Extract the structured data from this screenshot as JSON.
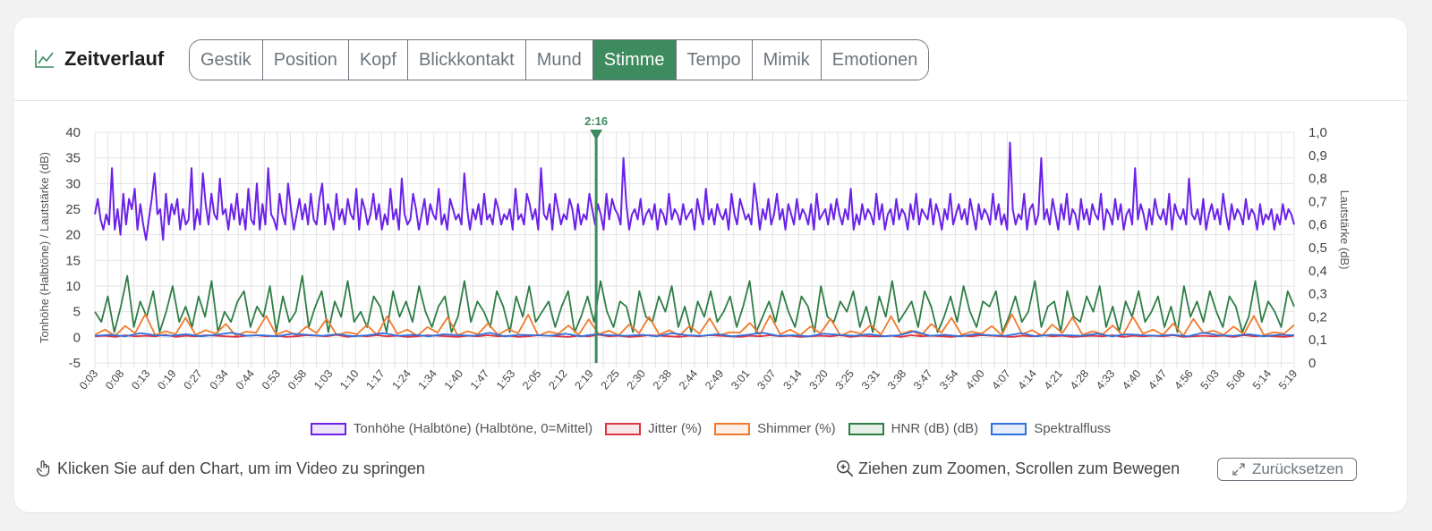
{
  "header": {
    "title": "Zeitverlauf",
    "tabs": [
      "Gestik",
      "Position",
      "Kopf",
      "Blickkontakt",
      "Mund",
      "Stimme",
      "Tempo",
      "Mimik",
      "Emotionen"
    ],
    "active_tab": "Stimme"
  },
  "footer": {
    "hint_left": "Klicken Sie auf den Chart, um im Video zu springen",
    "hint_right": "Ziehen zum Zoomen, Scrollen zum Bewegen",
    "reset_label": "Zurücksetzen"
  },
  "chart_data": {
    "type": "line",
    "ylabel": "Tonhöhe (Halbtöne) / Lautstärke (dB)",
    "y2label": "Lautstärke (dB)",
    "ylim": [
      -5,
      40
    ],
    "yticks": [
      -5,
      0,
      5,
      10,
      15,
      20,
      25,
      30,
      35,
      40
    ],
    "y2lim": [
      0,
      1
    ],
    "y2ticks": [
      "0",
      "0,1",
      "0,2",
      "0,3",
      "0,4",
      "0,5",
      "0,6",
      "0,7",
      "0,8",
      "0,9",
      "1,0"
    ],
    "x_tick_labels": [
      "0:03",
      "0:08",
      "0:13",
      "0:19",
      "0:27",
      "0:34",
      "0:44",
      "0:53",
      "0:58",
      "1:03",
      "1:10",
      "1:17",
      "1:24",
      "1:34",
      "1:40",
      "1:47",
      "1:53",
      "2:05",
      "2:12",
      "2:19",
      "2:25",
      "2:30",
      "2:38",
      "2:44",
      "2:49",
      "3:01",
      "3:07",
      "3:14",
      "3:20",
      "3:25",
      "3:31",
      "3:38",
      "3:47",
      "3:54",
      "4:00",
      "4:07",
      "4:14",
      "4:21",
      "4:28",
      "4:33",
      "4:40",
      "4:47",
      "4:56",
      "5:03",
      "5:08",
      "5:14",
      "5:19"
    ],
    "marker": {
      "label": "2:16",
      "x_fraction": 0.418,
      "color": "#3d8b5e"
    },
    "grid": true,
    "legend_position": "bottom",
    "series": [
      {
        "name": "Tonhöhe (Halbtöne) (Halbtöne, 0=Mittel)",
        "color": "#6b21e8",
        "values": [
          24,
          27,
          23,
          21,
          24,
          22,
          33,
          21,
          25,
          20,
          28,
          22,
          27,
          25,
          29,
          21,
          26,
          22,
          19,
          23,
          27,
          32,
          24,
          25,
          19,
          28,
          22,
          26,
          24,
          27,
          21,
          25,
          22,
          23,
          33,
          21,
          25,
          22,
          32,
          26,
          22,
          28,
          24,
          23,
          31,
          24,
          25,
          21,
          26,
          23,
          28,
          22,
          25,
          21,
          29,
          23,
          22,
          30,
          21,
          26,
          22,
          33,
          24,
          23,
          21,
          28,
          24,
          22,
          30,
          25,
          21,
          24,
          27,
          23,
          26,
          22,
          28,
          23,
          22,
          27,
          30,
          22,
          26,
          24,
          21,
          28,
          23,
          25,
          22,
          27,
          24,
          23,
          29,
          21,
          27,
          25,
          22,
          24,
          28,
          23,
          26,
          21,
          24,
          22,
          29,
          23,
          25,
          21,
          31,
          24,
          22,
          23,
          28,
          25,
          21,
          24,
          27,
          22,
          26,
          24,
          23,
          29,
          22,
          24,
          21,
          27,
          25,
          23,
          24,
          22,
          32,
          25,
          21,
          25,
          23,
          26,
          22,
          28,
          23,
          24,
          22,
          27,
          25,
          22,
          24,
          23,
          25,
          21,
          29,
          23,
          24,
          22,
          28,
          26,
          23,
          25,
          21,
          33,
          24,
          23,
          26,
          21,
          28,
          25,
          22,
          24,
          23,
          27,
          25,
          21,
          26,
          22,
          24,
          23,
          28,
          25,
          22,
          26,
          24,
          21,
          28,
          23,
          27,
          25,
          24,
          22,
          35,
          26,
          21,
          24,
          25,
          23,
          27,
          22,
          24,
          25,
          23,
          26,
          21,
          25,
          24,
          22,
          28,
          23,
          25,
          24,
          22,
          26,
          23,
          24,
          25,
          21,
          27,
          24,
          22,
          29,
          23,
          25,
          22,
          26,
          24,
          23,
          25,
          21,
          28,
          24,
          22,
          27,
          25,
          23,
          24,
          22,
          30,
          26,
          21,
          25,
          23,
          27,
          22,
          24,
          28,
          23,
          25,
          21,
          26,
          24,
          22,
          27,
          23,
          25,
          24,
          22,
          26,
          21,
          28,
          23,
          24,
          25,
          22,
          26,
          23,
          27,
          24,
          22,
          25,
          23,
          29,
          21,
          24,
          22,
          26,
          23,
          25,
          24,
          22,
          28,
          23,
          26,
          21,
          24,
          25,
          22,
          27,
          23,
          25,
          24,
          21,
          26,
          23,
          28,
          22,
          25,
          24,
          23,
          27,
          22,
          26,
          24,
          21,
          25,
          23,
          28,
          22,
          24,
          26,
          23,
          25,
          22,
          27,
          24,
          21,
          26,
          23,
          25,
          24,
          22,
          28,
          23,
          26,
          22,
          24,
          21,
          38,
          25,
          22,
          24,
          23,
          28,
          21,
          25,
          26,
          22,
          24,
          35,
          23,
          25,
          22,
          27,
          24,
          21,
          26,
          23,
          28,
          22,
          25,
          24,
          21,
          27,
          23,
          25,
          22,
          26,
          24,
          23,
          28,
          21,
          25,
          24,
          22,
          27,
          23,
          26,
          21,
          24,
          25,
          22,
          33,
          23,
          26,
          24,
          21,
          25,
          22,
          27,
          24,
          23,
          25,
          22,
          28,
          21,
          26,
          24,
          23,
          25,
          22,
          31,
          24,
          23,
          25,
          22,
          27,
          21,
          24,
          26,
          23,
          25,
          22,
          28,
          24,
          21,
          26,
          23,
          25,
          24,
          22,
          27,
          23,
          25,
          24,
          21,
          26,
          22,
          24,
          23,
          25,
          21,
          24,
          22,
          26,
          23,
          25,
          24,
          22
        ]
      },
      {
        "name": "Jitter (%)",
        "color": "#dc3545",
        "values": [
          0.2,
          0.3,
          0.1,
          0.4,
          0.2,
          0.3,
          0.2,
          0.5,
          0.1,
          0.3,
          0.2,
          0.4,
          0.3,
          0.2,
          0.1,
          0.3,
          0.4,
          0.2,
          0.3,
          0.1,
          0.2,
          0.4,
          0.3,
          0.2,
          0.5,
          0.1,
          0.3,
          0.2,
          0.4,
          0.2,
          0.3,
          0.1,
          0.2,
          0.4,
          0.3,
          0.2,
          0.1,
          0.3,
          0.2,
          0.4,
          0.2,
          0.3,
          0.1,
          0.2,
          0.4,
          0.3,
          0.2,
          0.1,
          0.3,
          0.2,
          0.5,
          0.2,
          0.3,
          0.1,
          0.2,
          0.4,
          0.3,
          0.2,
          0.1,
          0.3,
          0.2,
          0.4,
          0.3,
          0.2,
          0.1,
          0.3,
          0.2,
          0.4,
          0.2,
          0.3,
          0.1,
          0.2,
          0.3,
          0.2,
          0.4,
          0.1,
          0.3,
          0.2,
          0.2,
          0.3,
          0.1,
          0.4,
          0.2,
          0.3,
          0.2,
          0.1,
          0.3,
          0.2,
          0.4,
          0.3,
          0.2,
          0.1,
          0.3,
          0.2,
          0.4,
          0.2,
          0.3,
          0.1,
          0.2,
          0.3,
          0.2,
          0.4,
          0.1,
          0.3,
          0.2,
          0.3,
          0.2,
          0.4,
          0.1,
          0.2,
          0.3,
          0.2,
          0.3,
          0.1,
          0.4,
          0.2,
          0.3,
          0.2,
          0.1,
          0.3
        ]
      },
      {
        "name": "Shimmer (%)",
        "color": "#f07a2b",
        "values": [
          0.5,
          1.5,
          0.3,
          2.2,
          0.8,
          4.5,
          0.4,
          1.2,
          0.6,
          3.8,
          0.5,
          1.4,
          0.7,
          2.6,
          0.3,
          1.1,
          0.9,
          4.2,
          0.5,
          1.3,
          0.4,
          2.1,
          0.8,
          3.6,
          0.4,
          1.0,
          0.6,
          2.4,
          0.5,
          4.1,
          0.7,
          1.5,
          0.3,
          2.0,
          0.9,
          3.9,
          0.4,
          1.2,
          0.6,
          2.7,
          0.5,
          1.6,
          0.8,
          4.4,
          0.3,
          1.1,
          0.7,
          2.3,
          0.5,
          3.5,
          0.6,
          1.3,
          0.4,
          2.5,
          0.8,
          4.0,
          0.5,
          1.4,
          0.3,
          2.2,
          0.7,
          3.7,
          0.4,
          1.0,
          0.9,
          2.8,
          0.5,
          4.3,
          0.6,
          1.5,
          0.4,
          2.1,
          0.8,
          3.6,
          0.3,
          1.2,
          0.7,
          2.4,
          0.5,
          4.1,
          0.6,
          1.3,
          0.4,
          2.6,
          0.9,
          3.8,
          0.5,
          1.1,
          0.7,
          2.2,
          0.4,
          4.5,
          0.6,
          1.4,
          0.3,
          2.5,
          0.8,
          3.9,
          0.5,
          1.2,
          0.6,
          2.3,
          0.4,
          4.0,
          0.7,
          1.5,
          0.5,
          2.7,
          0.3,
          3.6,
          0.8,
          1.3,
          0.5,
          2.1,
          0.6,
          4.2,
          0.4,
          1.0,
          0.7,
          2.4
        ]
      },
      {
        "name": "HNR (dB) (dB)",
        "color": "#2e7d45",
        "values": [
          5,
          3,
          8,
          1,
          6,
          12,
          2,
          7,
          4,
          9,
          1,
          5,
          10,
          3,
          6,
          2,
          8,
          4,
          11,
          1,
          5,
          3,
          7,
          9,
          2,
          6,
          4,
          10,
          1,
          8,
          3,
          5,
          12,
          2,
          6,
          9,
          1,
          7,
          4,
          11,
          3,
          5,
          2,
          8,
          6,
          1,
          9,
          4,
          7,
          3,
          10,
          5,
          2,
          6,
          8,
          1,
          4,
          11,
          3,
          7,
          5,
          2,
          9,
          6,
          1,
          8,
          4,
          10,
          3,
          5,
          7,
          2,
          6,
          9,
          1,
          4,
          8,
          3,
          11,
          5,
          2,
          7,
          6,
          1,
          9,
          4,
          3,
          8,
          5,
          10,
          2,
          6,
          1,
          7,
          4,
          9,
          3,
          5,
          8,
          2,
          6,
          11,
          1,
          4,
          7,
          3,
          9,
          5,
          2,
          8,
          6,
          1,
          10,
          4,
          3,
          7,
          5,
          9,
          2,
          6,
          1,
          8,
          4,
          11,
          3,
          5,
          7,
          2,
          9,
          6,
          1,
          4,
          8,
          3,
          10,
          5,
          2,
          7,
          6,
          9,
          1,
          4,
          8,
          3,
          5,
          11,
          2,
          6,
          7,
          1,
          9,
          4,
          3,
          8,
          5,
          10,
          2,
          6,
          1,
          7,
          4,
          9,
          3,
          5,
          8,
          2,
          6,
          1,
          10,
          4,
          7,
          3,
          9,
          5,
          2,
          8,
          6,
          1,
          4,
          11,
          3,
          7,
          5,
          2,
          9,
          6
        ]
      },
      {
        "name": "Spektralfluss",
        "color": "#2f6fe0",
        "values": [
          0.3,
          0.5,
          0.2,
          0.8,
          0.4,
          0.3,
          0.6,
          0.2,
          0.5,
          0.9,
          0.3,
          0.4,
          0.2,
          0.7,
          0.5,
          0.3,
          0.6,
          0.2,
          0.4,
          0.8,
          0.3,
          0.5,
          0.2,
          0.6,
          0.4,
          0.3,
          0.9,
          0.2,
          0.5,
          0.4,
          0.3,
          0.7,
          0.2,
          0.6,
          0.4,
          0.3,
          0.5,
          0.2,
          0.8,
          0.4,
          0.3,
          0.6,
          0.2,
          0.5,
          0.9,
          0.3,
          0.4,
          0.2,
          0.7,
          0.5,
          0.3,
          0.6,
          0.2,
          0.4,
          1.2,
          0.3,
          0.5,
          0.2,
          0.6,
          0.4,
          0.3,
          0.8,
          0.2,
          0.5,
          0.4,
          0.3,
          0.7,
          0.2,
          0.6,
          0.4,
          0.3,
          0.5,
          0.2,
          0.9,
          0.4,
          0.3,
          0.6,
          0.2,
          0.5,
          0.4
        ]
      }
    ]
  }
}
